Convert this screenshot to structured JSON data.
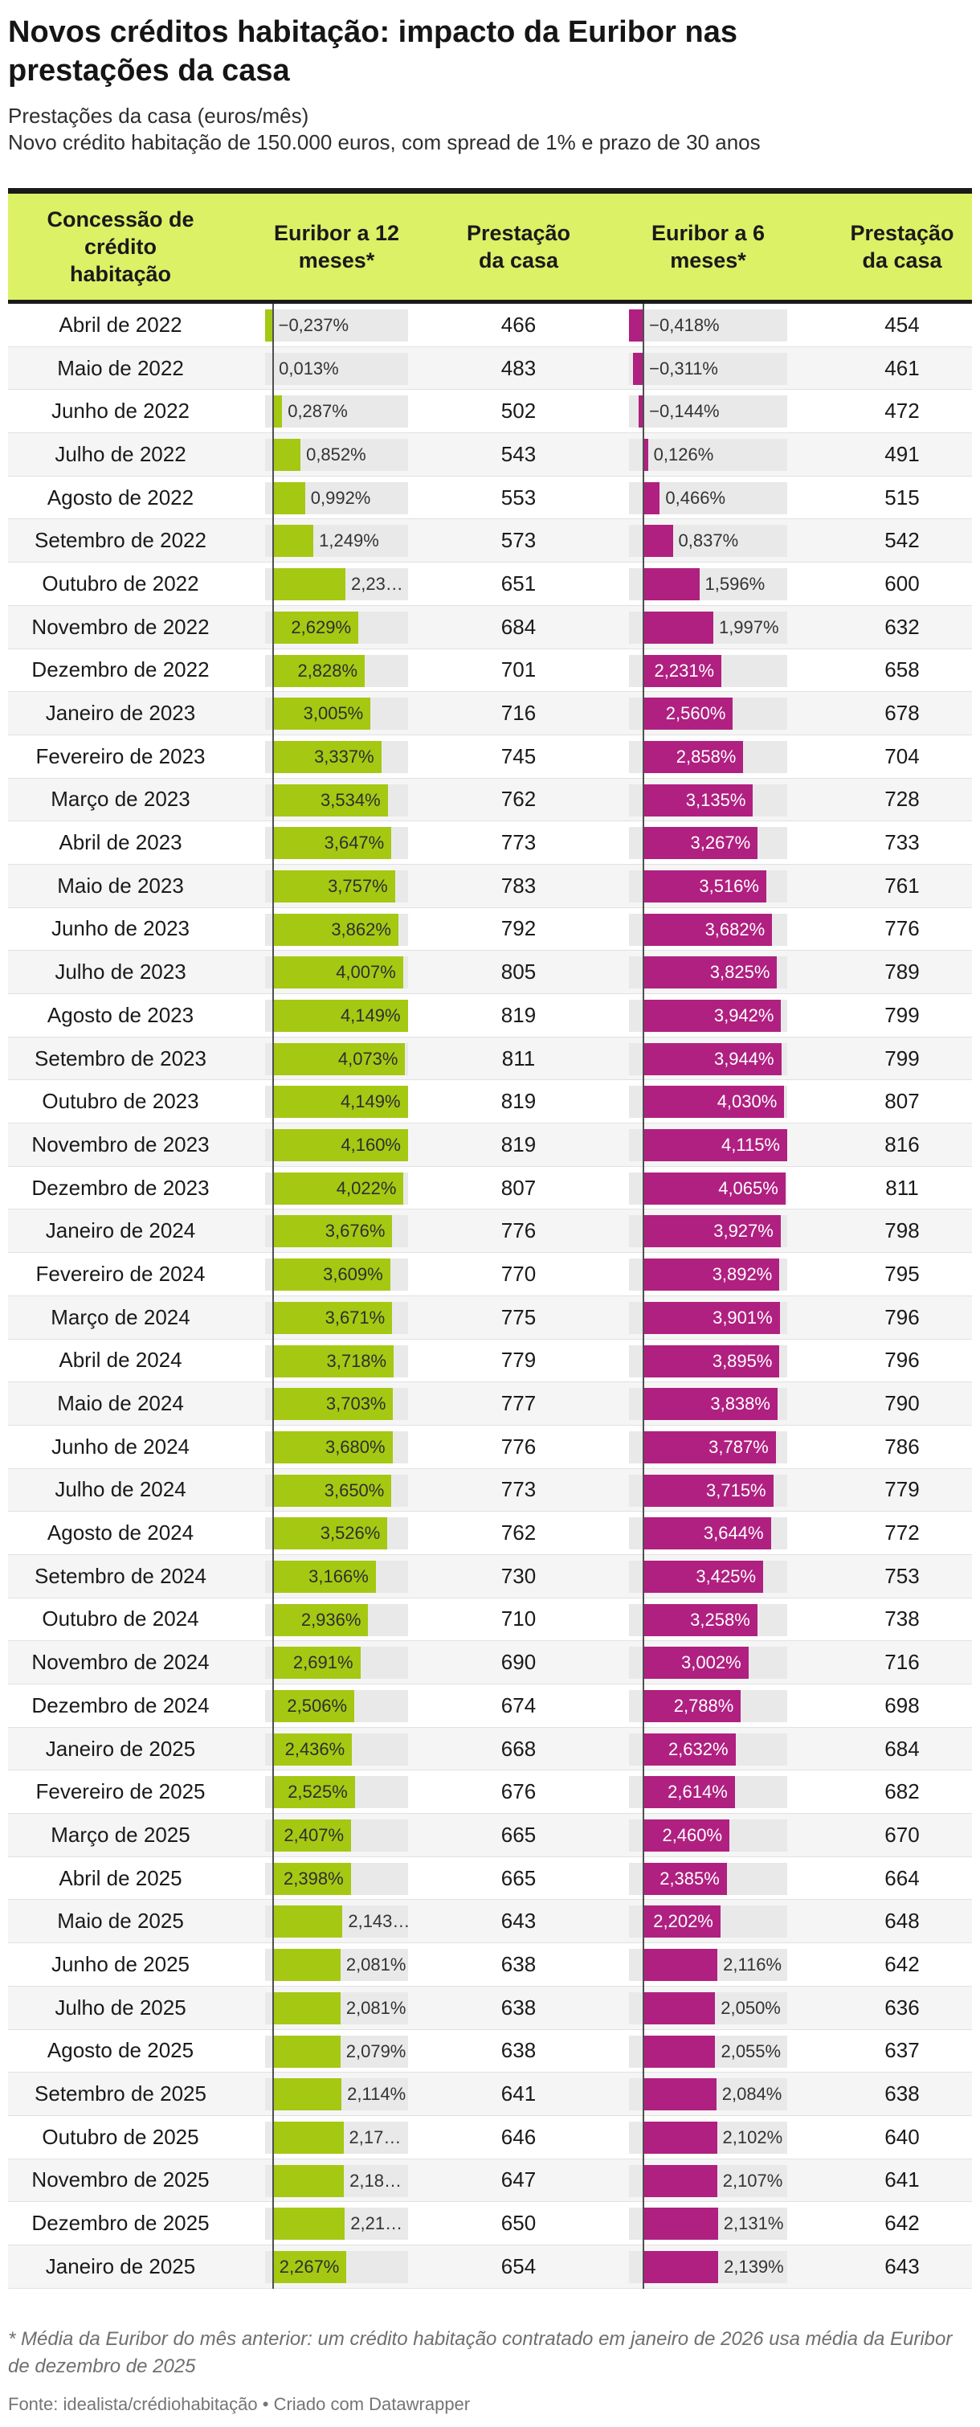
{
  "header": {
    "title": "Novos créditos habitação: impacto da Euribor nas prestações da casa",
    "subtitle1": "Prestações da casa (euros/mês)",
    "subtitle2": "Novo crédito habitação de 150.000 euros, com spread de 1% e prazo de 30 anos"
  },
  "columns": [
    {
      "lines": [
        "Concessão de",
        "crédito",
        "habitação"
      ]
    },
    {
      "lines": [
        "Euribor a 12",
        "meses*"
      ]
    },
    {
      "lines": [
        "Prestação",
        "da casa"
      ]
    },
    {
      "lines": [
        "Euribor a 6",
        "meses*"
      ]
    },
    {
      "lines": [
        "Prestação",
        "da casa"
      ]
    }
  ],
  "colors": {
    "header_bg": "#dcf166",
    "bar_green": "#a5c813",
    "bar_magenta": "#b02080",
    "track_gray": "#e9e9e9",
    "alt_row": "#f5f5f5"
  },
  "rows": [
    {
      "month": "Abril de 2022",
      "e12": -0.237,
      "e12_label": "−0,237%",
      "e12_inside": false,
      "p12": "466",
      "e6": -0.418,
      "e6_label": "−0,418%",
      "e6_inside": false,
      "p6": "454"
    },
    {
      "month": "Maio de 2022",
      "e12": 0.013,
      "e12_label": "0,013%",
      "e12_inside": false,
      "p12": "483",
      "e6": -0.311,
      "e6_label": "−0,311%",
      "e6_inside": false,
      "p6": "461"
    },
    {
      "month": "Junho de 2022",
      "e12": 0.287,
      "e12_label": "0,287%",
      "e12_inside": false,
      "p12": "502",
      "e6": -0.144,
      "e6_label": "−0,144%",
      "e6_inside": false,
      "p6": "472"
    },
    {
      "month": "Julho de 2022",
      "e12": 0.852,
      "e12_label": "0,852%",
      "e12_inside": false,
      "p12": "543",
      "e6": 0.126,
      "e6_label": "0,126%",
      "e6_inside": false,
      "p6": "491"
    },
    {
      "month": "Agosto de 2022",
      "e12": 0.992,
      "e12_label": "0,992%",
      "e12_inside": false,
      "p12": "553",
      "e6": 0.466,
      "e6_label": "0,466%",
      "e6_inside": false,
      "p6": "515"
    },
    {
      "month": "Setembro de 2022",
      "e12": 1.249,
      "e12_label": "1,249%",
      "e12_inside": false,
      "p12": "573",
      "e6": 0.837,
      "e6_label": "0,837%",
      "e6_inside": false,
      "p6": "542"
    },
    {
      "month": "Outubro de 2022",
      "e12": 2.233,
      "e12_label": "2,23…",
      "e12_inside": false,
      "p12": "651",
      "e6": 1.596,
      "e6_label": "1,596%",
      "e6_inside": false,
      "p6": "600"
    },
    {
      "month": "Novembro de 2022",
      "e12": 2.629,
      "e12_label": "2,629%",
      "e12_inside": true,
      "p12": "684",
      "e6": 1.997,
      "e6_label": "1,997%",
      "e6_inside": false,
      "p6": "632"
    },
    {
      "month": "Dezembro de 2022",
      "e12": 2.828,
      "e12_label": "2,828%",
      "e12_inside": true,
      "p12": "701",
      "e6": 2.231,
      "e6_label": "2,231%",
      "e6_inside": true,
      "p6": "658"
    },
    {
      "month": "Janeiro de 2023",
      "e12": 3.005,
      "e12_label": "3,005%",
      "e12_inside": true,
      "p12": "716",
      "e6": 2.56,
      "e6_label": "2,560%",
      "e6_inside": true,
      "p6": "678"
    },
    {
      "month": "Fevereiro de 2023",
      "e12": 3.337,
      "e12_label": "3,337%",
      "e12_inside": true,
      "p12": "745",
      "e6": 2.858,
      "e6_label": "2,858%",
      "e6_inside": true,
      "p6": "704"
    },
    {
      "month": "Março de 2023",
      "e12": 3.534,
      "e12_label": "3,534%",
      "e12_inside": true,
      "p12": "762",
      "e6": 3.135,
      "e6_label": "3,135%",
      "e6_inside": true,
      "p6": "728"
    },
    {
      "month": "Abril de 2023",
      "e12": 3.647,
      "e12_label": "3,647%",
      "e12_inside": true,
      "p12": "773",
      "e6": 3.267,
      "e6_label": "3,267%",
      "e6_inside": true,
      "p6": "733"
    },
    {
      "month": "Maio de 2023",
      "e12": 3.757,
      "e12_label": "3,757%",
      "e12_inside": true,
      "p12": "783",
      "e6": 3.516,
      "e6_label": "3,516%",
      "e6_inside": true,
      "p6": "761"
    },
    {
      "month": "Junho de 2023",
      "e12": 3.862,
      "e12_label": "3,862%",
      "e12_inside": true,
      "p12": "792",
      "e6": 3.682,
      "e6_label": "3,682%",
      "e6_inside": true,
      "p6": "776"
    },
    {
      "month": "Julho de 2023",
      "e12": 4.007,
      "e12_label": "4,007%",
      "e12_inside": true,
      "p12": "805",
      "e6": 3.825,
      "e6_label": "3,825%",
      "e6_inside": true,
      "p6": "789"
    },
    {
      "month": "Agosto de 2023",
      "e12": 4.149,
      "e12_label": "4,149%",
      "e12_inside": true,
      "p12": "819",
      "e6": 3.942,
      "e6_label": "3,942%",
      "e6_inside": true,
      "p6": "799"
    },
    {
      "month": "Setembro de 2023",
      "e12": 4.073,
      "e12_label": "4,073%",
      "e12_inside": true,
      "p12": "811",
      "e6": 3.944,
      "e6_label": "3,944%",
      "e6_inside": true,
      "p6": "799"
    },
    {
      "month": "Outubro de 2023",
      "e12": 4.149,
      "e12_label": "4,149%",
      "e12_inside": true,
      "p12": "819",
      "e6": 4.03,
      "e6_label": "4,030%",
      "e6_inside": true,
      "p6": "807"
    },
    {
      "month": "Novembro de 2023",
      "e12": 4.16,
      "e12_label": "4,160%",
      "e12_inside": true,
      "p12": "819",
      "e6": 4.115,
      "e6_label": "4,115%",
      "e6_inside": true,
      "p6": "816"
    },
    {
      "month": "Dezembro de 2023",
      "e12": 4.022,
      "e12_label": "4,022%",
      "e12_inside": true,
      "p12": "807",
      "e6": 4.065,
      "e6_label": "4,065%",
      "e6_inside": true,
      "p6": "811"
    },
    {
      "month": "Janeiro de 2024",
      "e12": 3.676,
      "e12_label": "3,676%",
      "e12_inside": true,
      "p12": "776",
      "e6": 3.927,
      "e6_label": "3,927%",
      "e6_inside": true,
      "p6": "798"
    },
    {
      "month": "Fevereiro de 2024",
      "e12": 3.609,
      "e12_label": "3,609%",
      "e12_inside": true,
      "p12": "770",
      "e6": 3.892,
      "e6_label": "3,892%",
      "e6_inside": true,
      "p6": "795"
    },
    {
      "month": "Março de 2024",
      "e12": 3.671,
      "e12_label": "3,671%",
      "e12_inside": true,
      "p12": "775",
      "e6": 3.901,
      "e6_label": "3,901%",
      "e6_inside": true,
      "p6": "796"
    },
    {
      "month": "Abril de 2024",
      "e12": 3.718,
      "e12_label": "3,718%",
      "e12_inside": true,
      "p12": "779",
      "e6": 3.895,
      "e6_label": "3,895%",
      "e6_inside": true,
      "p6": "796"
    },
    {
      "month": "Maio de 2024",
      "e12": 3.703,
      "e12_label": "3,703%",
      "e12_inside": true,
      "p12": "777",
      "e6": 3.838,
      "e6_label": "3,838%",
      "e6_inside": true,
      "p6": "790"
    },
    {
      "month": "Junho de 2024",
      "e12": 3.68,
      "e12_label": "3,680%",
      "e12_inside": true,
      "p12": "776",
      "e6": 3.787,
      "e6_label": "3,787%",
      "e6_inside": true,
      "p6": "786"
    },
    {
      "month": "Julho de 2024",
      "e12": 3.65,
      "e12_label": "3,650%",
      "e12_inside": true,
      "p12": "773",
      "e6": 3.715,
      "e6_label": "3,715%",
      "e6_inside": true,
      "p6": "779"
    },
    {
      "month": "Agosto de 2024",
      "e12": 3.526,
      "e12_label": "3,526%",
      "e12_inside": true,
      "p12": "762",
      "e6": 3.644,
      "e6_label": "3,644%",
      "e6_inside": true,
      "p6": "772"
    },
    {
      "month": "Setembro de 2024",
      "e12": 3.166,
      "e12_label": "3,166%",
      "e12_inside": true,
      "p12": "730",
      "e6": 3.425,
      "e6_label": "3,425%",
      "e6_inside": true,
      "p6": "753"
    },
    {
      "month": "Outubro de 2024",
      "e12": 2.936,
      "e12_label": "2,936%",
      "e12_inside": true,
      "p12": "710",
      "e6": 3.258,
      "e6_label": "3,258%",
      "e6_inside": true,
      "p6": "738"
    },
    {
      "month": "Novembro de 2024",
      "e12": 2.691,
      "e12_label": "2,691%",
      "e12_inside": true,
      "p12": "690",
      "e6": 3.002,
      "e6_label": "3,002%",
      "e6_inside": true,
      "p6": "716"
    },
    {
      "month": "Dezembro de 2024",
      "e12": 2.506,
      "e12_label": "2,506%",
      "e12_inside": true,
      "p12": "674",
      "e6": 2.788,
      "e6_label": "2,788%",
      "e6_inside": true,
      "p6": "698"
    },
    {
      "month": "Janeiro de 2025",
      "e12": 2.436,
      "e12_label": "2,436%",
      "e12_inside": true,
      "p12": "668",
      "e6": 2.632,
      "e6_label": "2,632%",
      "e6_inside": true,
      "p6": "684"
    },
    {
      "month": "Fevereiro de 2025",
      "e12": 2.525,
      "e12_label": "2,525%",
      "e12_inside": true,
      "p12": "676",
      "e6": 2.614,
      "e6_label": "2,614%",
      "e6_inside": true,
      "p6": "682"
    },
    {
      "month": "Março de 2025",
      "e12": 2.407,
      "e12_label": "2,407%",
      "e12_inside": true,
      "p12": "665",
      "e6": 2.46,
      "e6_label": "2,460%",
      "e6_inside": true,
      "p6": "670"
    },
    {
      "month": "Abril de 2025",
      "e12": 2.398,
      "e12_label": "2,398%",
      "e12_inside": true,
      "p12": "665",
      "e6": 2.385,
      "e6_label": "2,385%",
      "e6_inside": true,
      "p6": "664"
    },
    {
      "month": "Maio de 2025",
      "e12": 2.143,
      "e12_label": "2,143…",
      "e12_inside": false,
      "p12": "643",
      "e6": 2.202,
      "e6_label": "2,202%",
      "e6_inside": true,
      "p6": "648"
    },
    {
      "month": "Junho de 2025",
      "e12": 2.081,
      "e12_label": "2,081%",
      "e12_inside": false,
      "p12": "638",
      "e6": 2.116,
      "e6_label": "2,116%",
      "e6_inside": false,
      "p6": "642"
    },
    {
      "month": "Julho de 2025",
      "e12": 2.081,
      "e12_label": "2,081%",
      "e12_inside": false,
      "p12": "638",
      "e6": 2.05,
      "e6_label": "2,050%",
      "e6_inside": false,
      "p6": "636"
    },
    {
      "month": "Agosto de 2025",
      "e12": 2.079,
      "e12_label": "2,079%",
      "e12_inside": false,
      "p12": "638",
      "e6": 2.055,
      "e6_label": "2,055%",
      "e6_inside": false,
      "p6": "637"
    },
    {
      "month": "Setembro de 2025",
      "e12": 2.114,
      "e12_label": "2,114%",
      "e12_inside": false,
      "p12": "641",
      "e6": 2.084,
      "e6_label": "2,084%",
      "e6_inside": false,
      "p6": "638"
    },
    {
      "month": "Outubro de 2025",
      "e12": 2.172,
      "e12_label": "2,17…",
      "e12_inside": false,
      "p12": "646",
      "e6": 2.102,
      "e6_label": "2,102%",
      "e6_inside": false,
      "p6": "640"
    },
    {
      "month": "Novembro de 2025",
      "e12": 2.187,
      "e12_label": "2,18…",
      "e12_inside": false,
      "p12": "647",
      "e6": 2.107,
      "e6_label": "2,107%",
      "e6_inside": false,
      "p6": "641"
    },
    {
      "month": "Dezembro de 2025",
      "e12": 2.216,
      "e12_label": "2,21…",
      "e12_inside": false,
      "p12": "650",
      "e6": 2.131,
      "e6_label": "2,131%",
      "e6_inside": false,
      "p6": "642"
    },
    {
      "month": "Janeiro de 2025",
      "e12": 2.267,
      "e12_label": "2,267%",
      "e12_inside": true,
      "p12": "654",
      "e6": 2.139,
      "e6_label": "2,139%",
      "e6_inside": false,
      "p6": "643"
    }
  ],
  "footer": {
    "footnote": "* Média da Euribor do mês anterior: um crédito habitação contratado em janeiro de 2026 usa média da Euribor de dezembro de 2025",
    "source": "Fonte: idealista/crédiohabitação • Criado com Datawrapper"
  },
  "chart_data": {
    "type": "table",
    "title": "Novos créditos habitação: impacto da Euribor nas prestações da casa",
    "subtitle": "Prestações da casa (euros/mês) — Novo crédito habitação de 150.000 euros, com spread de 1% e prazo de 30 anos",
    "columns": [
      "Concessão de crédito habitação",
      "Euribor a 12 meses*",
      "Prestação da casa",
      "Euribor a 6 meses*",
      "Prestação da casa"
    ],
    "categories": [
      "Abril de 2022",
      "Maio de 2022",
      "Junho de 2022",
      "Julho de 2022",
      "Agosto de 2022",
      "Setembro de 2022",
      "Outubro de 2022",
      "Novembro de 2022",
      "Dezembro de 2022",
      "Janeiro de 2023",
      "Fevereiro de 2023",
      "Março de 2023",
      "Abril de 2023",
      "Maio de 2023",
      "Junho de 2023",
      "Julho de 2023",
      "Agosto de 2023",
      "Setembro de 2023",
      "Outubro de 2023",
      "Novembro de 2023",
      "Dezembro de 2023",
      "Janeiro de 2024",
      "Fevereiro de 2024",
      "Março de 2024",
      "Abril de 2024",
      "Maio de 2024",
      "Junho de 2024",
      "Julho de 2024",
      "Agosto de 2024",
      "Setembro de 2024",
      "Outubro de 2024",
      "Novembro de 2024",
      "Dezembro de 2024",
      "Janeiro de 2025",
      "Fevereiro de 2025",
      "Março de 2025",
      "Abril de 2025",
      "Maio de 2025",
      "Junho de 2025",
      "Julho de 2025",
      "Agosto de 2025",
      "Setembro de 2025",
      "Outubro de 2025",
      "Novembro de 2025",
      "Dezembro de 2025",
      "Janeiro de 2025"
    ],
    "series": [
      {
        "name": "Euribor a 12 meses (%)",
        "values": [
          -0.237,
          0.013,
          0.287,
          0.852,
          0.992,
          1.249,
          2.233,
          2.629,
          2.828,
          3.005,
          3.337,
          3.534,
          3.647,
          3.757,
          3.862,
          4.007,
          4.149,
          4.073,
          4.149,
          4.16,
          4.022,
          3.676,
          3.609,
          3.671,
          3.718,
          3.703,
          3.68,
          3.65,
          3.526,
          3.166,
          2.936,
          2.691,
          2.506,
          2.436,
          2.525,
          2.407,
          2.398,
          2.143,
          2.081,
          2.081,
          2.079,
          2.114,
          2.172,
          2.187,
          2.216,
          2.267
        ]
      },
      {
        "name": "Prestação da casa (12m, euros/mês)",
        "values": [
          466,
          483,
          502,
          543,
          553,
          573,
          651,
          684,
          701,
          716,
          745,
          762,
          773,
          783,
          792,
          805,
          819,
          811,
          819,
          819,
          807,
          776,
          770,
          775,
          779,
          777,
          776,
          773,
          762,
          730,
          710,
          690,
          674,
          668,
          676,
          665,
          665,
          643,
          638,
          638,
          638,
          641,
          646,
          647,
          650,
          654
        ]
      },
      {
        "name": "Euribor a 6 meses (%)",
        "values": [
          -0.418,
          -0.311,
          -0.144,
          0.126,
          0.466,
          0.837,
          1.596,
          1.997,
          2.231,
          2.56,
          2.858,
          3.135,
          3.267,
          3.516,
          3.682,
          3.825,
          3.942,
          3.944,
          4.03,
          4.115,
          4.065,
          3.927,
          3.892,
          3.901,
          3.895,
          3.838,
          3.787,
          3.715,
          3.644,
          3.425,
          3.258,
          3.002,
          2.788,
          2.632,
          2.614,
          2.46,
          2.385,
          2.202,
          2.116,
          2.05,
          2.055,
          2.084,
          2.102,
          2.107,
          2.131,
          2.139
        ]
      },
      {
        "name": "Prestação da casa (6m, euros/mês)",
        "values": [
          454,
          461,
          472,
          491,
          515,
          542,
          600,
          632,
          658,
          678,
          704,
          728,
          733,
          761,
          776,
          789,
          799,
          799,
          807,
          816,
          811,
          798,
          795,
          796,
          796,
          790,
          786,
          779,
          772,
          753,
          738,
          716,
          698,
          684,
          682,
          670,
          664,
          648,
          642,
          636,
          637,
          638,
          640,
          641,
          642,
          643
        ]
      }
    ],
    "bar_axes": {
      "euribor_12m": {
        "min": -0.237,
        "max": 4.16
      },
      "euribor_6m": {
        "min": -0.418,
        "max": 4.115
      }
    },
    "bar_colors": {
      "euribor_12m": "#a5c813",
      "euribor_6m": "#b02080"
    }
  }
}
